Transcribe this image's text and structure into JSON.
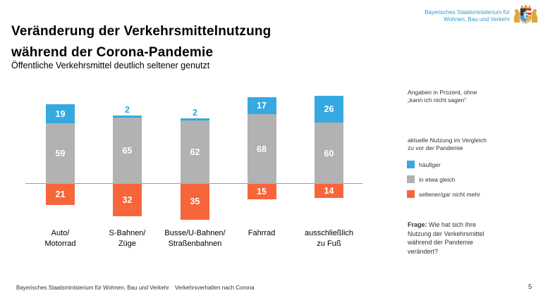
{
  "header": {
    "title_lines": [
      "Veränderung der Verkehrsmittelnutzung",
      "während der Corona-Pandemie"
    ],
    "subtitle": "Öffentliche Verkehrsmittel deutlich seltener genutzt",
    "ministry_lines": [
      "Bayerisches Staatsministerium für",
      "Wohnen, Bau und Verkehr"
    ],
    "ministry_color": "#2e9dca"
  },
  "chart_data": {
    "type": "bar",
    "subtype": "diverging-stacked",
    "unit": "percent",
    "title": "Veränderung der Verkehrsmittelnutzung während der Corona-Pandemie",
    "note": "Angaben in Prozent, ohne „kann ich nicht sagen“",
    "categories": [
      [
        "Auto/",
        "Motorrad"
      ],
      [
        "S-Bahnen/",
        "Züge"
      ],
      [
        "Busse/U-Bahnen/",
        "Straßenbahnen"
      ],
      [
        "Fahrrad"
      ],
      [
        "ausschließlich",
        "zu Fuß"
      ]
    ],
    "series": [
      {
        "name": "häufiger",
        "color": "#36a9e1",
        "position": "above-baseline-top",
        "values": [
          19,
          2,
          2,
          17,
          26
        ]
      },
      {
        "name": "in etwa gleich",
        "color": "#b2b2b2",
        "position": "above-baseline",
        "values": [
          59,
          65,
          62,
          68,
          60
        ]
      },
      {
        "name": "seltener/gar nicht mehr",
        "color": "#f7653a",
        "position": "below-baseline",
        "values": [
          21,
          32,
          35,
          15,
          14
        ]
      }
    ],
    "axis_color": "#9c9c9c",
    "legend_position": "right",
    "grid": false
  },
  "side_panel": {
    "note_lines": [
      "Angaben in Prozent, ohne",
      "„kann ich nicht sagen“"
    ],
    "legend_title_lines": [
      "aktuelle Nutzung im Vergleich",
      "zu vor der Pandemie"
    ],
    "question_bold": "Frage:",
    "question_rest": " Wie hat sich Ihre Nutzung der Verkehrsmittel während der Pandemie verändert?"
  },
  "footer": {
    "left": "Bayerisches Staatsministerium für Wohnen, Bau und Verkehr",
    "center": "Verkehrsverhalten nach Corona",
    "page": "5"
  }
}
